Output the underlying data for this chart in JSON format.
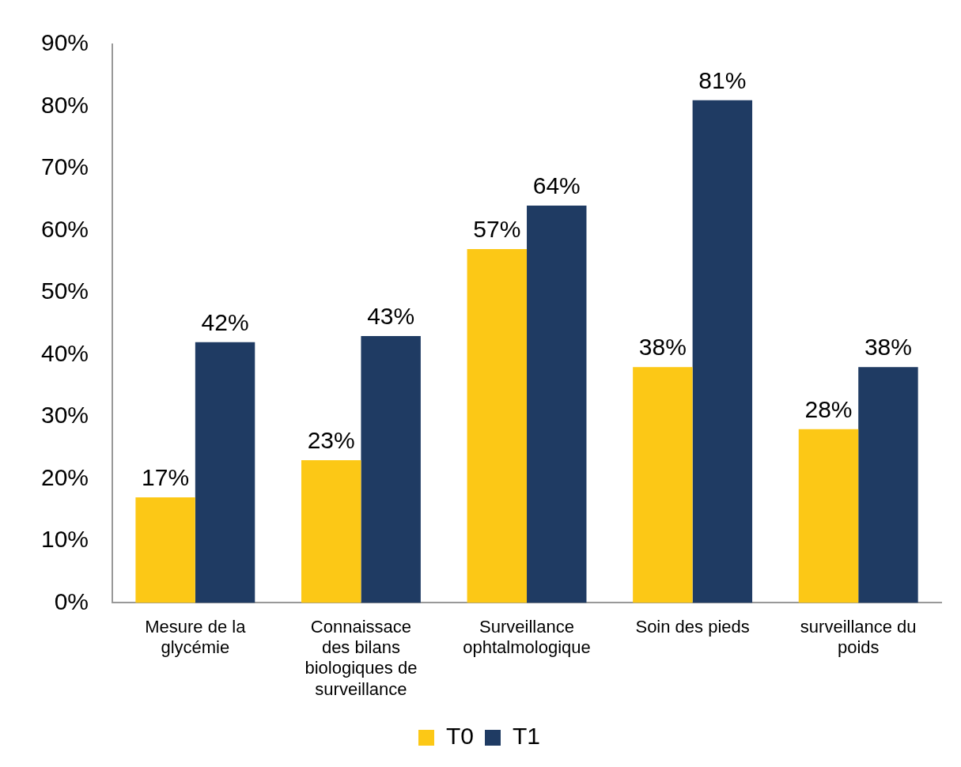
{
  "chart_data": {
    "type": "bar",
    "categories": [
      "Mesure de la glycémie",
      "Connaissace des bilans biologiques de surveillance",
      "Surveillance ophtalmologique",
      "Soin des pieds",
      "surveillance du poids"
    ],
    "series": [
      {
        "name": "T0",
        "color": "#fcc816",
        "values": [
          17,
          23,
          57,
          38,
          28
        ],
        "value_labels": [
          "17%",
          "23%",
          "57%",
          "38%",
          "28%"
        ]
      },
      {
        "name": "T1",
        "color": "#1f3b63",
        "values": [
          42,
          43,
          64,
          81,
          38
        ],
        "value_labels": [
          "42%",
          "43%",
          "64%",
          "81%",
          "38%"
        ]
      }
    ],
    "ylim": [
      0,
      90
    ],
    "yticks": [
      {
        "value": 0,
        "label": "0%"
      },
      {
        "value": 10,
        "label": "10%"
      },
      {
        "value": 20,
        "label": "20%"
      },
      {
        "value": 30,
        "label": "30%"
      },
      {
        "value": 40,
        "label": "40%"
      },
      {
        "value": 50,
        "label": "50%"
      },
      {
        "value": 60,
        "label": "60%"
      },
      {
        "value": 70,
        "label": "70%"
      },
      {
        "value": 80,
        "label": "80%"
      },
      {
        "value": 90,
        "label": "90%"
      }
    ],
    "grid": false,
    "legend": "bottom"
  }
}
